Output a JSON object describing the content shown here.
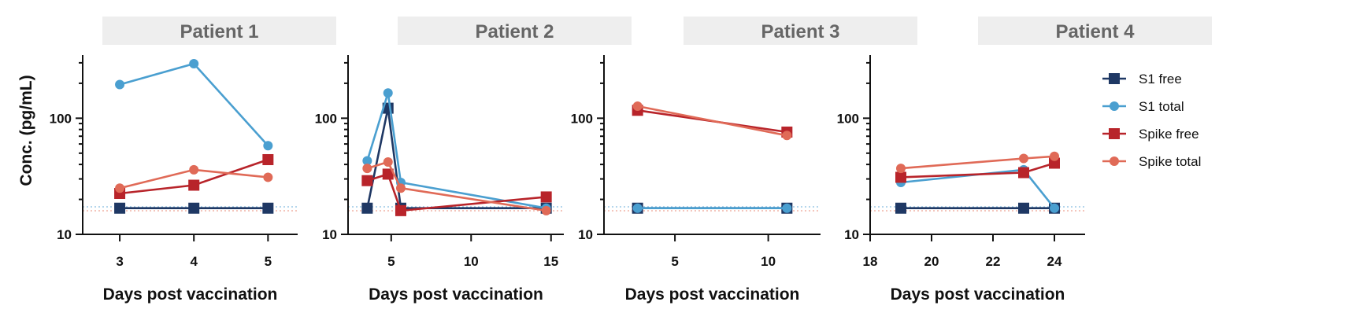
{
  "colors": {
    "s1_free": "#1f3864",
    "s1_total": "#4a9fd0",
    "spike_free": "#b8242a",
    "spike_total": "#e06a57",
    "title_bg": "#eeeeee"
  },
  "legend": [
    {
      "key": "s1_free",
      "label": "S1 free",
      "marker": "square"
    },
    {
      "key": "s1_total",
      "label": "S1 total",
      "marker": "circle"
    },
    {
      "key": "spike_free",
      "label": "Spike free",
      "marker": "square"
    },
    {
      "key": "spike_total",
      "label": "Spike total",
      "marker": "circle"
    }
  ],
  "chart_data": [
    {
      "type": "line",
      "title": "Patient 1",
      "xlabel": "Days post vaccination",
      "ylabel": "Conc. (pg/mL)",
      "yscale": "log",
      "ylim": [
        10,
        350
      ],
      "yticks": [
        10,
        100
      ],
      "xlim": [
        2.5,
        5.4
      ],
      "xticks": [
        3,
        4,
        5
      ],
      "series": [
        {
          "name": "S1 free",
          "key": "s1_free",
          "x": [
            3,
            4,
            5
          ],
          "values": [
            16.8,
            16.8,
            16.8
          ]
        },
        {
          "name": "S1 total",
          "key": "s1_total",
          "x": [
            3,
            4,
            5
          ],
          "values": [
            195,
            295,
            58
          ]
        },
        {
          "name": "Spike free",
          "key": "spike_free",
          "x": [
            3,
            4,
            5
          ],
          "values": [
            22.5,
            26.5,
            44
          ]
        },
        {
          "name": "Spike total",
          "key": "spike_total",
          "x": [
            3,
            4,
            5
          ],
          "values": [
            25,
            36,
            31
          ]
        }
      ]
    },
    {
      "type": "line",
      "title": "Patient 2",
      "xlabel": "Days post vaccination",
      "yscale": "log",
      "ylim": [
        10,
        350
      ],
      "yticks": [
        10,
        100
      ],
      "xlim": [
        2.3,
        15.8
      ],
      "xticks": [
        5,
        10,
        15
      ],
      "series": [
        {
          "name": "S1 free",
          "key": "s1_free",
          "x": [
            3.5,
            4.8,
            5.6,
            14.7
          ],
          "values": [
            16.8,
            122,
            16.8,
            16.8
          ]
        },
        {
          "name": "S1 total",
          "key": "s1_total",
          "x": [
            3.5,
            4.8,
            5.6,
            14.7
          ],
          "values": [
            43,
            165,
            28,
            16.8
          ]
        },
        {
          "name": "Spike free",
          "key": "spike_free",
          "x": [
            3.5,
            4.8,
            5.6,
            14.7
          ],
          "values": [
            29,
            33,
            16,
            21
          ]
        },
        {
          "name": "Spike total",
          "key": "spike_total",
          "x": [
            3.5,
            4.8,
            5.6,
            14.7
          ],
          "values": [
            37,
            42,
            25,
            16
          ]
        }
      ]
    },
    {
      "type": "line",
      "title": "Patient 3",
      "xlabel": "Days post vaccination",
      "yscale": "log",
      "ylim": [
        10,
        350
      ],
      "yticks": [
        10,
        100
      ],
      "xlim": [
        1.2,
        12.8
      ],
      "xticks": [
        5,
        10
      ],
      "series": [
        {
          "name": "S1 free",
          "key": "s1_free",
          "x": [
            3,
            11
          ],
          "values": [
            16.8,
            16.8
          ]
        },
        {
          "name": "S1 total",
          "key": "s1_total",
          "x": [
            3,
            11
          ],
          "values": [
            16.8,
            16.8
          ]
        },
        {
          "name": "Spike free",
          "key": "spike_free",
          "x": [
            3,
            11
          ],
          "values": [
            117,
            76
          ]
        },
        {
          "name": "Spike total",
          "key": "spike_total",
          "x": [
            3,
            11
          ],
          "values": [
            127,
            71
          ]
        }
      ]
    },
    {
      "type": "line",
      "title": "Patient 4",
      "xlabel": "Days post vaccination",
      "yscale": "log",
      "ylim": [
        10,
        350
      ],
      "yticks": [
        10,
        100
      ],
      "xlim": [
        18,
        25
      ],
      "xticks": [
        18,
        20,
        22,
        24
      ],
      "series": [
        {
          "name": "S1 free",
          "key": "s1_free",
          "x": [
            19,
            23,
            24
          ],
          "values": [
            16.8,
            16.8,
            16.8
          ]
        },
        {
          "name": "S1 total",
          "key": "s1_total",
          "x": [
            19,
            23,
            24
          ],
          "values": [
            28,
            36,
            16.8
          ]
        },
        {
          "name": "Spike free",
          "key": "spike_free",
          "x": [
            19,
            23,
            24
          ],
          "values": [
            31,
            34,
            41
          ]
        },
        {
          "name": "Spike total",
          "key": "spike_total",
          "x": [
            19,
            23,
            24
          ],
          "values": [
            37,
            45,
            47
          ]
        }
      ]
    }
  ]
}
